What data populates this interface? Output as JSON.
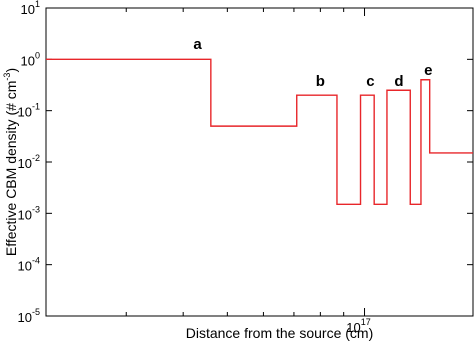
{
  "chart_data": {
    "type": "step",
    "drawstyle": "steps-post",
    "xlog": true,
    "ylog": true,
    "xlabel": "Distance from the source (cm)",
    "ylabel": {
      "text": "Effective CBM density (# cm",
      "sup": "-3",
      "after": ")"
    },
    "x": [
      2e+16,
      4.6e+16,
      7.1e+16,
      8.7e+16,
      9.8e+16,
      1.05e+17,
      1.12e+17,
      1.26e+17,
      1.33e+17,
      1.39e+17
    ],
    "series": [
      {
        "color": "#e8262a",
        "values": [
          1.0,
          0.05,
          0.2,
          0.0015,
          0.2,
          0.0015,
          0.25,
          0.0015,
          0.4,
          0.015
        ]
      }
    ],
    "xlim": [
      2e+16,
      1.73e+17
    ],
    "ylim": [
      1e-05,
      10
    ],
    "xticks": [
      {
        "value": 1e+17,
        "label": "10",
        "exponent": "17"
      }
    ],
    "xminorticks": [
      3e+16,
      4e+16,
      5e+16,
      6e+16,
      7e+16,
      8e+16,
      9e+16
    ],
    "yticks": [
      {
        "value": 1e-05,
        "label": "10",
        "exponent": "-5"
      },
      {
        "value": 0.0001,
        "label": "10",
        "exponent": "-4"
      },
      {
        "value": 0.001,
        "label": "10",
        "exponent": "-3"
      },
      {
        "value": 0.01,
        "label": "10",
        "exponent": "-2"
      },
      {
        "value": 0.1,
        "label": "10",
        "exponent": "-1"
      },
      {
        "value": 1,
        "label": "10",
        "exponent": "0"
      },
      {
        "value": 10,
        "label": "10",
        "exponent": "1"
      }
    ],
    "annotations": [
      {
        "text": "a",
        "x": 4.3e+16,
        "y": 1.6
      },
      {
        "text": "b",
        "x": 8e+16,
        "y": 0.3
      },
      {
        "text": "c",
        "x": 1.03e+17,
        "y": 0.3
      },
      {
        "text": "d",
        "x": 1.19e+17,
        "y": 0.3
      },
      {
        "text": "e",
        "x": 1.38e+17,
        "y": 0.5
      }
    ]
  }
}
